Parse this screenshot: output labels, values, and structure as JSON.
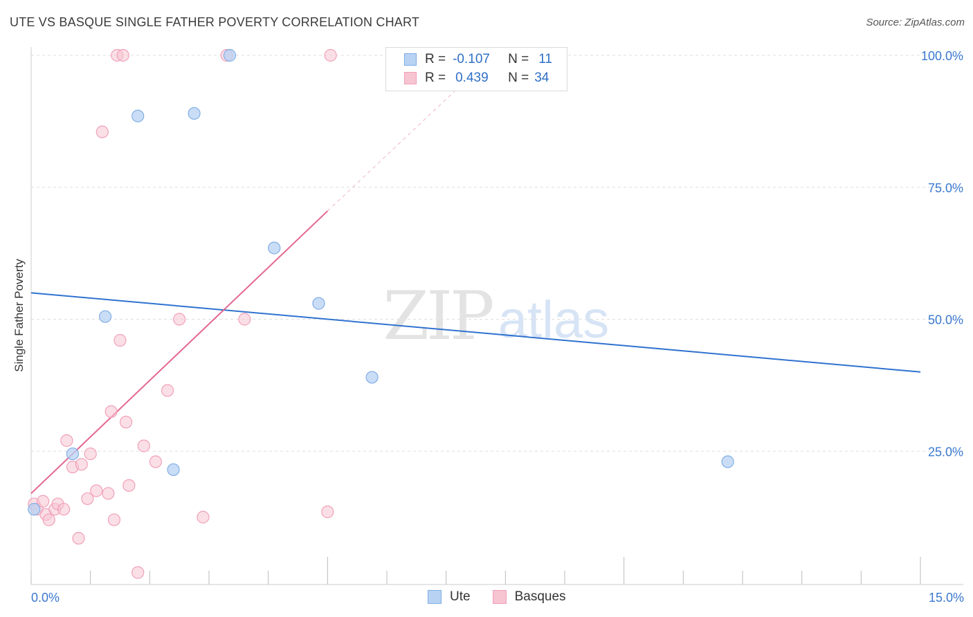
{
  "title": "UTE VS BASQUE SINGLE FATHER POVERTY CORRELATION CHART",
  "source": "Source: ZipAtlas.com",
  "watermark": {
    "zip": "ZIP",
    "atlas": "atlas"
  },
  "legend": {
    "rows": [
      {
        "r_label": "R =",
        "r_value": "-0.107",
        "n_label": "N =",
        "n_value": "11"
      },
      {
        "r_label": "R =",
        "r_value": "0.439",
        "n_label": "N =",
        "n_value": "34"
      }
    ]
  },
  "bottom_legend": {
    "ute": "Ute",
    "basques": "Basques"
  },
  "colors": {
    "ute_fill": "#b8d2f3",
    "ute_stroke": "#7faee6",
    "ute_line": "#2f72cf",
    "basque_fill": "#f7c4d2",
    "basque_stroke": "#f0a0b8",
    "basque_line": "#e4668f",
    "axis_text": "#3a78cf",
    "grid": "#dddddd"
  },
  "chart_data": {
    "type": "scatter",
    "title": "UTE VS BASQUE SINGLE FATHER POVERTY CORRELATION CHART",
    "xlabel": "",
    "ylabel": "Single Father Poverty",
    "xlim": [
      0,
      15
    ],
    "ylim": [
      0,
      100
    ],
    "x_tick_labels": [
      {
        "value": 0,
        "label": "0.0%"
      },
      {
        "value": 15,
        "label": "15.0%"
      }
    ],
    "y_tick_labels": [
      {
        "value": 25,
        "label": "25.0%"
      },
      {
        "value": 50,
        "label": "50.0%"
      },
      {
        "value": 75,
        "label": "75.0%"
      },
      {
        "value": 100,
        "label": "100.0%"
      }
    ],
    "series": [
      {
        "name": "Ute",
        "r": -0.107,
        "n": 11,
        "points": [
          [
            0.05,
            14.0
          ],
          [
            0.7,
            24.5
          ],
          [
            1.25,
            50.5
          ],
          [
            1.8,
            88.5
          ],
          [
            2.4,
            21.5
          ],
          [
            2.75,
            89.0
          ],
          [
            3.35,
            100.0
          ],
          [
            4.1,
            63.5
          ],
          [
            4.85,
            53.0
          ],
          [
            5.75,
            39.0
          ],
          [
            11.75,
            23.0
          ]
        ],
        "trend": {
          "x": [
            0,
            15
          ],
          "y": [
            55.0,
            40.0
          ],
          "dashed_x": null
        }
      },
      {
        "name": "Basques",
        "r": 0.439,
        "n": 34,
        "points": [
          [
            0.05,
            15.0
          ],
          [
            0.1,
            14.0
          ],
          [
            0.2,
            15.5
          ],
          [
            0.25,
            13.0
          ],
          [
            0.3,
            12.0
          ],
          [
            0.4,
            14.0
          ],
          [
            0.45,
            15.0
          ],
          [
            0.55,
            14.0
          ],
          [
            0.6,
            27.0
          ],
          [
            0.7,
            22.0
          ],
          [
            0.8,
            8.5
          ],
          [
            0.85,
            22.5
          ],
          [
            0.95,
            16.0
          ],
          [
            1.0,
            24.5
          ],
          [
            1.1,
            17.5
          ],
          [
            1.2,
            85.5
          ],
          [
            1.3,
            17.0
          ],
          [
            1.35,
            32.5
          ],
          [
            1.4,
            12.0
          ],
          [
            1.45,
            100.0
          ],
          [
            1.5,
            46.0
          ],
          [
            1.55,
            100.0
          ],
          [
            1.6,
            30.5
          ],
          [
            1.65,
            18.5
          ],
          [
            1.8,
            2.0
          ],
          [
            1.9,
            26.0
          ],
          [
            2.1,
            23.0
          ],
          [
            2.3,
            36.5
          ],
          [
            2.5,
            50.0
          ],
          [
            2.9,
            12.5
          ],
          [
            3.3,
            100.0
          ],
          [
            3.6,
            50.0
          ],
          [
            5.0,
            13.5
          ],
          [
            5.05,
            100.0
          ]
        ],
        "trend": {
          "x": [
            0,
            5.0
          ],
          "y": [
            17.0,
            70.5
          ],
          "dashed_x": [
            5.0,
            7.5
          ],
          "dashed_y": [
            70.5,
            97.0
          ]
        }
      }
    ]
  }
}
